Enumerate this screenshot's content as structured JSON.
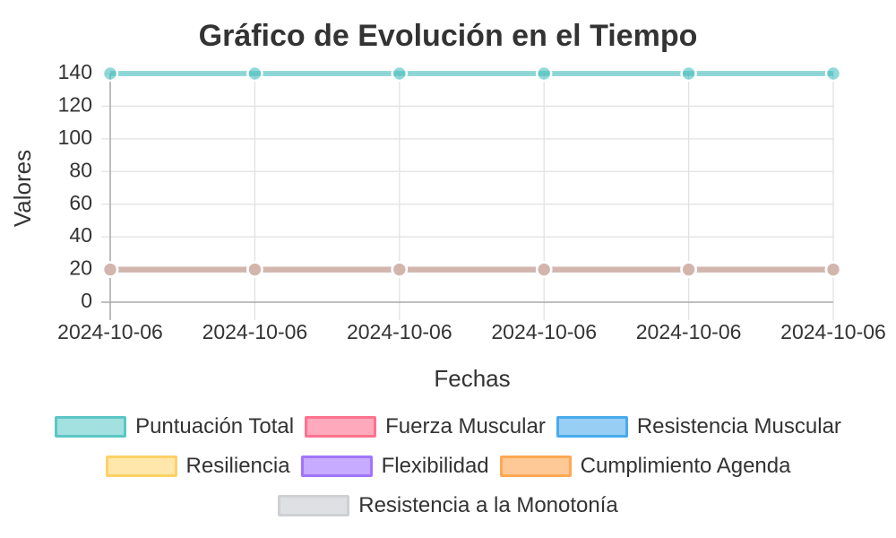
{
  "chart_data": {
    "type": "line",
    "title": "Gráfico de Evolución en el Tiempo",
    "xlabel": "Fechas",
    "ylabel": "Valores",
    "ylim": [
      0,
      140
    ],
    "yticks": [
      0,
      20,
      40,
      60,
      80,
      100,
      120,
      140
    ],
    "categories": [
      "2024-10-06",
      "2024-10-06",
      "2024-10-06",
      "2024-10-06",
      "2024-10-06",
      "2024-10-06"
    ],
    "grid": true,
    "legend_position": "bottom",
    "series": [
      {
        "name": "Puntuación Total",
        "values": [
          140,
          140,
          140,
          140,
          140,
          140
        ],
        "color": "#4bc0c0",
        "fill": "#9adddd"
      },
      {
        "name": "Fuerza Muscular",
        "values": [
          20,
          20,
          20,
          20,
          20,
          20
        ],
        "color": "#ff6384",
        "fill": "#ffa1b5"
      },
      {
        "name": "Resistencia Muscular",
        "values": [
          20,
          20,
          20,
          20,
          20,
          20
        ],
        "color": "#36a2eb",
        "fill": "#8fc9f3"
      },
      {
        "name": "Resiliencia",
        "values": [
          20,
          20,
          20,
          20,
          20,
          20
        ],
        "color": "#ffcd56",
        "fill": "#ffe4a3"
      },
      {
        "name": "Flexibilidad",
        "values": [
          20,
          20,
          20,
          20,
          20,
          20
        ],
        "color": "#9966ff",
        "fill": "#c2a3ff"
      },
      {
        "name": "Cumplimiento Agenda",
        "values": [
          20,
          20,
          20,
          20,
          20,
          20
        ],
        "color": "#ff9f40",
        "fill": "#ffc48c"
      },
      {
        "name": "Resistencia a la Monotonía",
        "values": [
          20,
          20,
          20,
          20,
          20,
          20
        ],
        "color": "#c9cbcf",
        "fill": "#dcdde0"
      }
    ]
  }
}
